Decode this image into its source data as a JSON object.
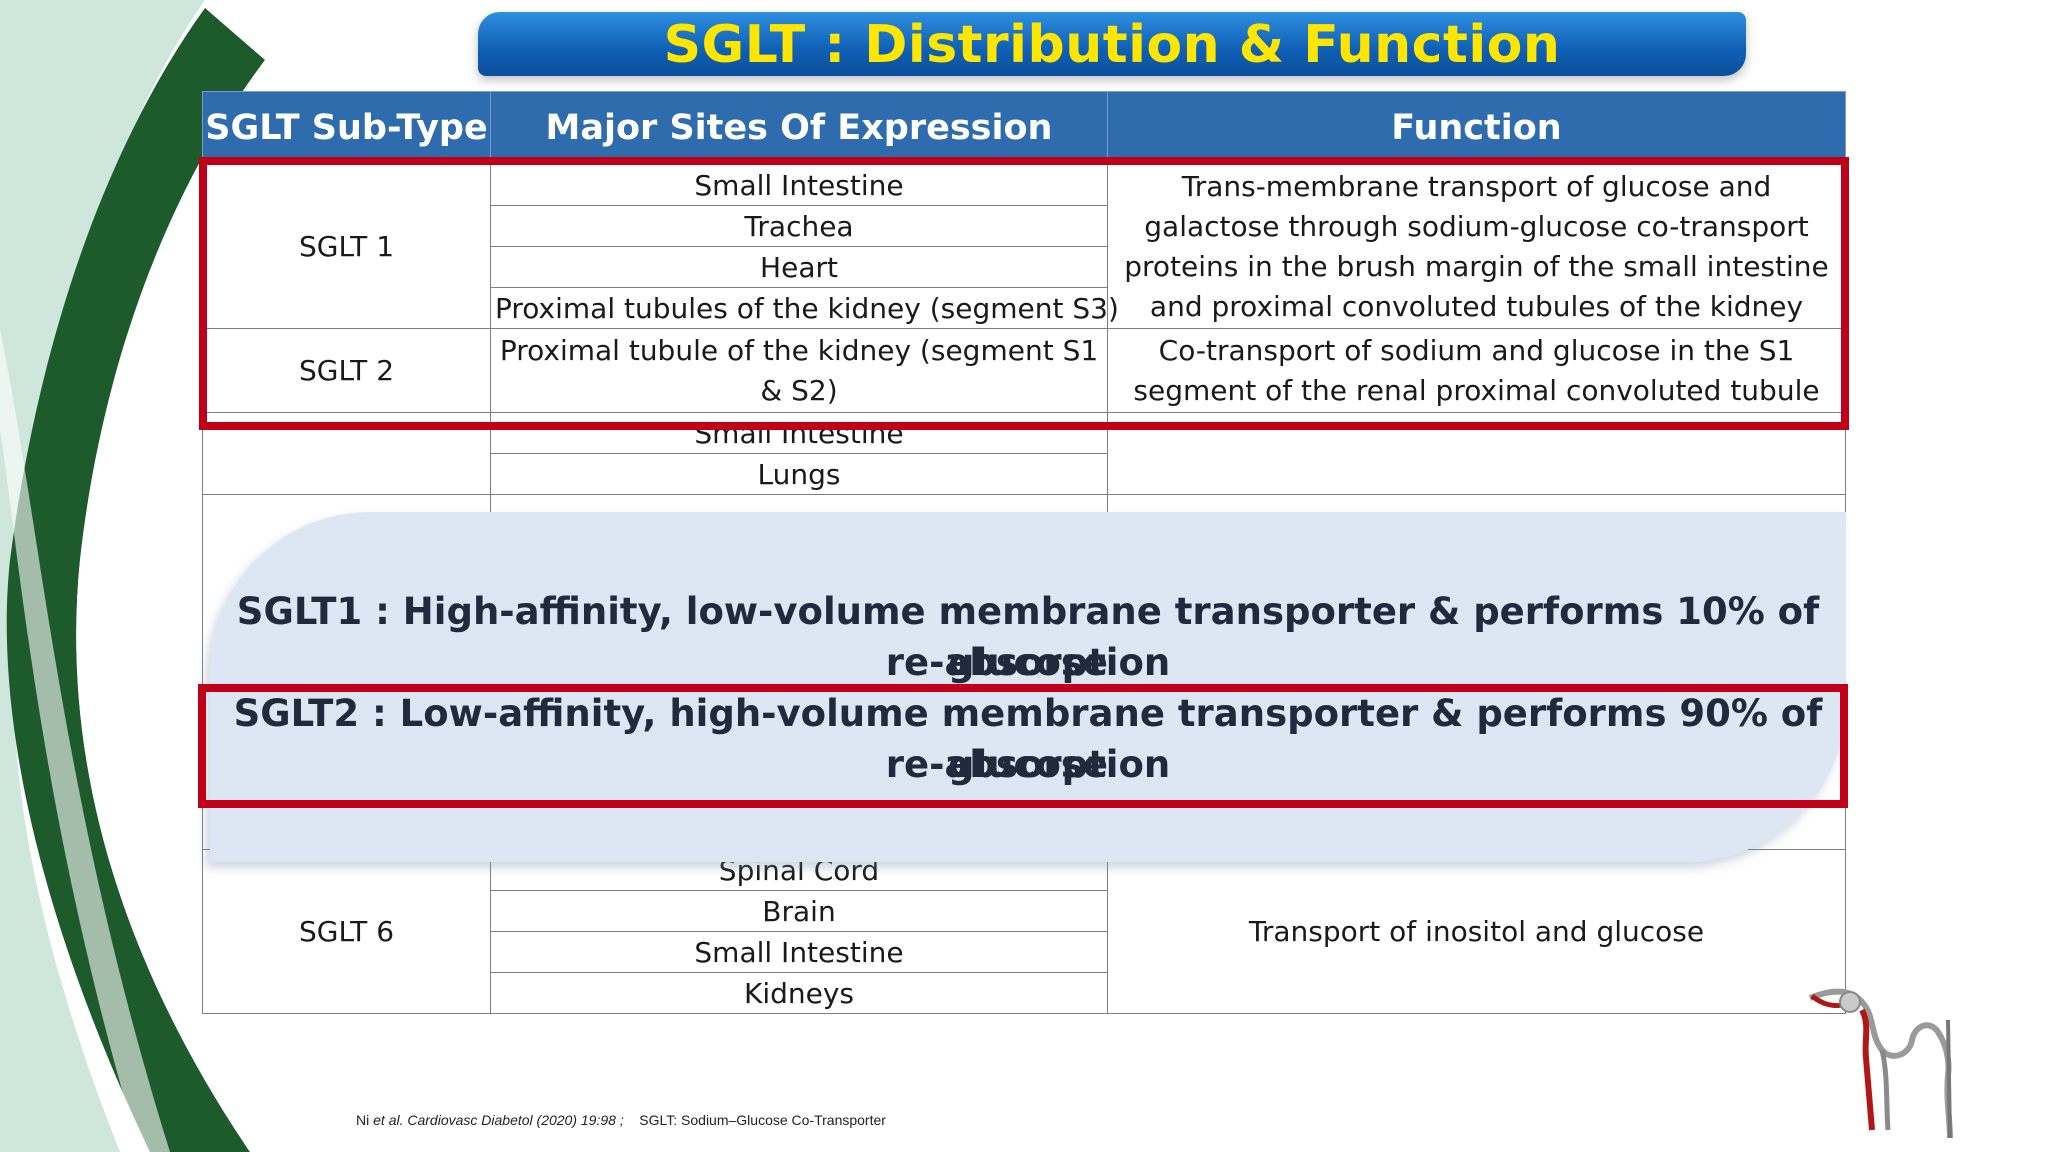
{
  "title": "SGLT : Distribution & Function",
  "table": {
    "headers": [
      "SGLT Sub-Type",
      "Major Sites Of Expression",
      "Function"
    ],
    "sglt1": {
      "subtype": "SGLT 1",
      "sites": [
        "Small Intestine",
        "Trachea",
        "Heart",
        "Proximal tubules of the kidney (segment S3)"
      ],
      "function": "Trans-membrane  transport of glucose and galactose through sodium-glucose co-transport proteins in the brush margin of the small intestine and proximal convoluted tubules of the kidney"
    },
    "sglt2": {
      "subtype": "SGLT 2",
      "site": "Proximal tubule of the kidney (segment S1 & S2)",
      "function": "Co-transport of sodium and glucose in the S1 segment of the renal proximal convoluted tubule"
    },
    "sglt3_partial": {
      "sites": [
        "Small Intestine",
        "Lungs"
      ]
    },
    "sglt6": {
      "subtype": "SGLT 6",
      "sites": [
        "Spinal Cord",
        "Brain",
        "Small Intestine",
        "Kidneys"
      ],
      "function": "Transport of inositol and glucose"
    }
  },
  "overlay": {
    "sglt1_line1": "SGLT1 : High-affinity, low-volume membrane transporter & performs 10% of glucose",
    "sglt1_line2": "re-absorption",
    "sglt2_line1": "SGLT2 : Low-affinity, high-volume membrane transporter & performs 90% of glucose",
    "sglt2_line2": "re-absorption"
  },
  "footer": {
    "authors": "Ni ",
    "etal": "et al. Cardiovasc Diabetol (2020) 19:98 ;",
    "note": "SGLT: Sodium–Glucose Co-Transporter"
  },
  "colors": {
    "title_text": "#ffe600",
    "title_bg": "#0f5fb4",
    "header_bg": "#2f6cae",
    "highlight": "#c00018",
    "overlay_bg": "#dde7f3",
    "decor_green": "#1d5a2c"
  }
}
